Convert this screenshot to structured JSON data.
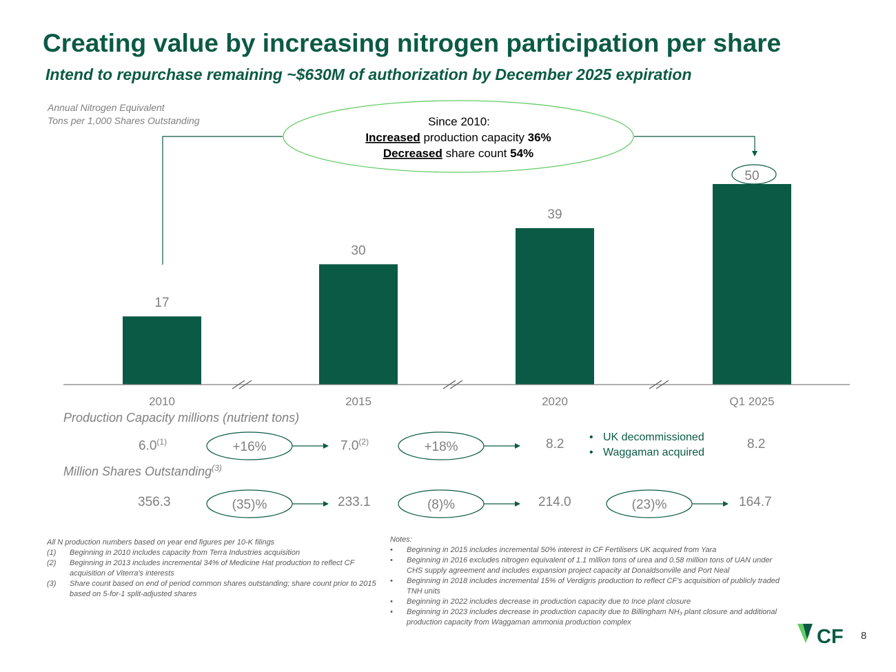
{
  "title": "Creating value by increasing nitrogen participation per share",
  "subtitle": "Intend to repurchase remaining ~$630M of authorization by December 2025 expiration",
  "ylabel_line1": "Annual Nitrogen Equivalent",
  "ylabel_line2": "Tons per 1,000 Shares Outstanding",
  "callout": {
    "line1": "Since 2010:",
    "line2_bold": "Increased",
    "line2_rest": " production capacity ",
    "line2_pct": "36%",
    "line3_bold": "Decreased",
    "line3_rest": " share count ",
    "line3_pct": "54%"
  },
  "chart_data": {
    "type": "bar",
    "categories": [
      "2010",
      "2015",
      "2020",
      "Q1 2025"
    ],
    "values": [
      17,
      30,
      39,
      50
    ],
    "data_labels": [
      "17",
      "30",
      "39",
      "50"
    ],
    "ylim": [
      0,
      50
    ],
    "grid": false,
    "axis_breaks": true
  },
  "production": {
    "label": "Production Capacity millions (nutrient tons)",
    "values": [
      "6.0",
      "7.0",
      "8.2",
      "8.2"
    ],
    "notes": [
      "(1)",
      "(2)",
      "",
      ""
    ],
    "changes": [
      "+16%",
      "+18%"
    ]
  },
  "bullets": [
    "UK decommissioned",
    "Waggaman acquired"
  ],
  "shares": {
    "label": "Million Shares Outstanding",
    "label_note": "(3)",
    "values": [
      "356.3",
      "233.1",
      "214.0",
      "164.7"
    ],
    "changes": [
      "(35)%",
      "(8)%",
      "(23)%"
    ]
  },
  "footnotes_left": {
    "intro": "All N production numbers based on year end figures per 10-K filings",
    "items": [
      {
        "num": "(1)",
        "text": "Beginning in 2010 includes capacity from Terra Industries acquisition"
      },
      {
        "num": "(2)",
        "text": "Beginning in 2013 includes incremental 34% of Medicine Hat production to reflect CF acquisition of Viterra's interests"
      },
      {
        "num": "(3)",
        "text": "Share count based on end of period common shares outstanding; share count prior to 2015 based on 5-for-1 split-adjusted shares"
      }
    ]
  },
  "notes": {
    "heading": "Notes:",
    "items": [
      "Beginning in 2015 includes incremental 50% interest in CF Fertilisers UK acquired from Yara",
      "Beginning in 2016 excludes nitrogen equivalent of 1.1 million tons of urea and 0.58 million tons of UAN under CHS supply agreement and includes expansion project capacity at Donaldsonville and Port Neal",
      "Beginning in 2018 includes incremental 15% of Verdigris production to reflect CF's acquisition of publicly traded TNH units",
      "Beginning in 2022 includes decrease in production capacity due to Ince plant closure",
      "Beginning in 2023 includes decrease in production capacity due to Billingham NH₃ plant closure and additional production capacity from Waggaman ammonia production complex"
    ]
  },
  "logo_text": "CF",
  "page_number": "8",
  "colors": {
    "primary": "#0b5a45",
    "accent": "#66cc66",
    "gray": "#7f7f7f"
  }
}
